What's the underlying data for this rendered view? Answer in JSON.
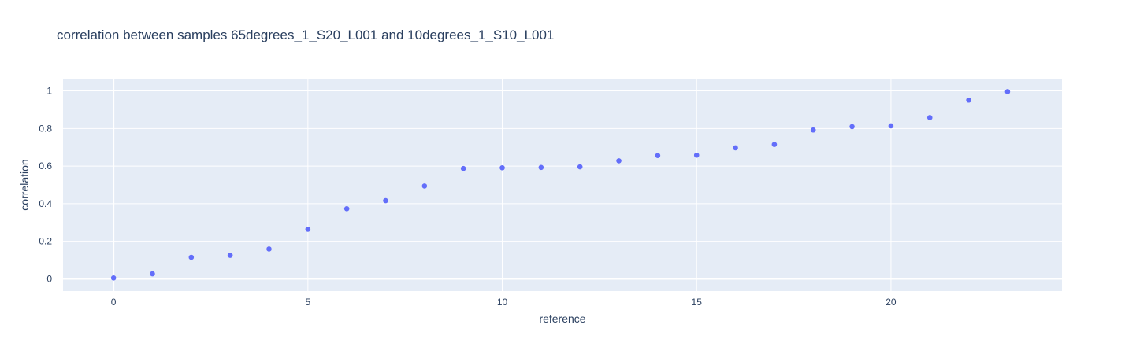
{
  "chart_data": {
    "type": "scatter",
    "title": "correlation between samples 65degrees_1_S20_L001 and 10degrees_1_S10_L001",
    "xlabel": "reference",
    "ylabel": "correlation",
    "xlim": [
      -1.3,
      24.4
    ],
    "ylim": [
      -0.065,
      1.065
    ],
    "xticks": [
      0,
      5,
      10,
      15,
      20
    ],
    "yticks": [
      0,
      0.2,
      0.4,
      0.6,
      0.8,
      1
    ],
    "ytick_labels": [
      "0",
      "0.2",
      "0.4",
      "0.6",
      "0.8",
      "1"
    ],
    "grid": true,
    "legend": "none",
    "series": [
      {
        "color": "#636efa",
        "x": [
          0,
          1,
          2,
          3,
          4,
          5,
          6,
          7,
          8,
          9,
          10,
          11,
          12,
          13,
          14,
          15,
          16,
          17,
          18,
          19,
          20,
          21,
          22,
          23
        ],
        "y": [
          0.005,
          0.027,
          0.115,
          0.125,
          0.159,
          0.264,
          0.373,
          0.416,
          0.494,
          0.587,
          0.591,
          0.593,
          0.596,
          0.628,
          0.656,
          0.658,
          0.697,
          0.715,
          0.792,
          0.81,
          0.814,
          0.858,
          0.951,
          0.996
        ]
      }
    ],
    "colors": {
      "plot_background": "#e5ecf6",
      "grid": "#ffffff",
      "text": "#2a3f5f",
      "marker": "#636efa"
    }
  }
}
